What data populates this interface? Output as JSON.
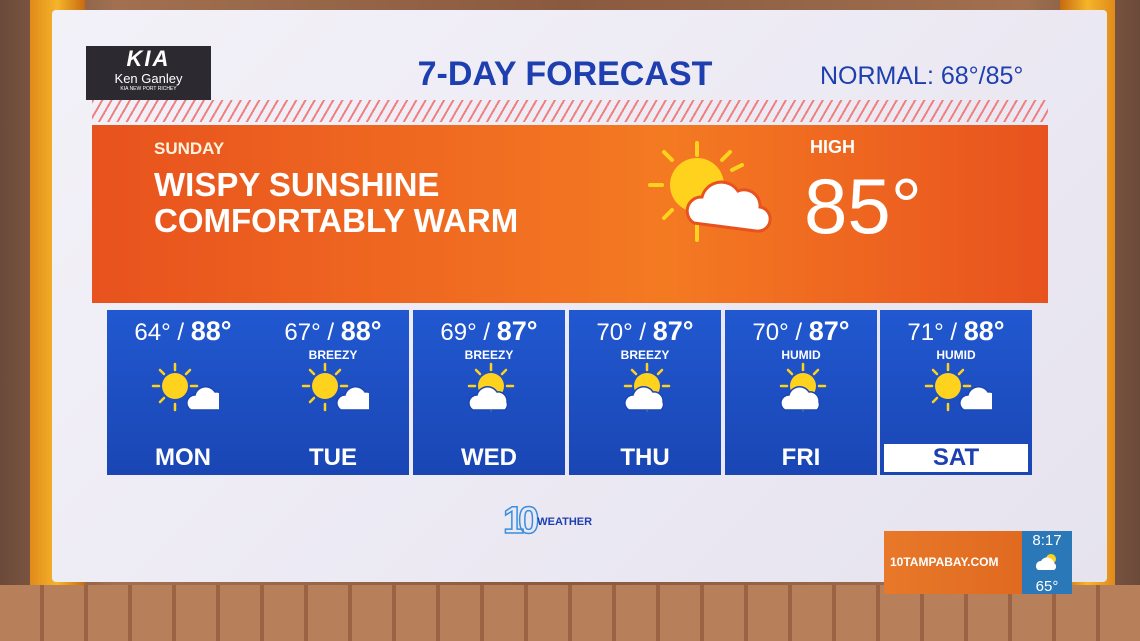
{
  "header": {
    "sponsor_logo": "KIA Ken Ganley",
    "sponsor_sub": "KIA NEW PORT RICHEY",
    "title": "7-DAY FORECAST",
    "normal": "NORMAL: 68°/85°"
  },
  "today": {
    "day": "SUNDAY",
    "line1": "WISPY SUNSHINE",
    "line2": "COMFORTABLY WARM",
    "icon": "partly-sunny-icon",
    "high_label": "HIGH",
    "high": "85°"
  },
  "days": [
    {
      "low": "64°",
      "high": "88°",
      "note": "",
      "icon": "sun-cloud-icon",
      "day": "MON"
    },
    {
      "low": "67°",
      "high": "88°",
      "note": "BREEZY",
      "icon": "sun-cloud-icon",
      "day": "TUE"
    },
    {
      "low": "69°",
      "high": "87°",
      "note": "BREEZY",
      "icon": "cloud-sun-icon",
      "day": "WED"
    },
    {
      "low": "70°",
      "high": "87°",
      "note": "BREEZY",
      "icon": "cloud-sun-icon",
      "day": "THU"
    },
    {
      "low": "70°",
      "high": "87°",
      "note": "HUMID",
      "icon": "cloud-sun-icon",
      "day": "FRI"
    },
    {
      "low": "71°",
      "high": "88°",
      "note": "HUMID",
      "icon": "sun-cloud-icon",
      "day": "SAT",
      "selected": true
    }
  ],
  "brand": {
    "logo": "10",
    "label": "WEATHER"
  },
  "bug": {
    "site": "10TAMPABAY.COM",
    "time": "8:17",
    "temp": "65°",
    "icon": "partly-cloudy-icon"
  },
  "colors": {
    "orange": "#f06a22",
    "blue": "#1d4fc4",
    "title_blue": "#1d3fb0"
  }
}
